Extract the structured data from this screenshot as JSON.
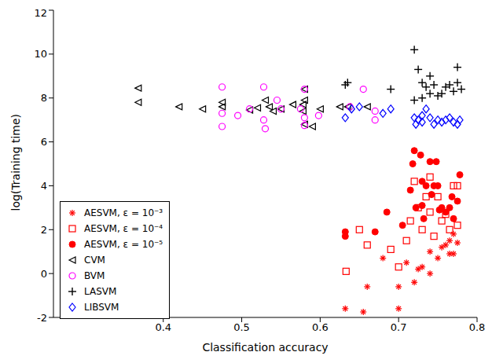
{
  "chart_data": {
    "type": "scatter",
    "x_label": "Classification accuracy",
    "y_label": "log(Training time)",
    "xlim": [
      0.26,
      0.8
    ],
    "xticks": [
      0.4,
      0.5,
      0.6,
      0.7,
      0.8
    ],
    "ylim": [
      -2,
      12
    ],
    "yticks": [
      -2,
      0,
      2,
      4,
      6,
      8,
      10,
      12
    ],
    "legend": "lower left",
    "series": [
      {
        "name": "AESVM, ε = 10⁻³",
        "color": "#ff0000",
        "marker": "asterisk",
        "x": [
          0.632,
          0.655,
          0.66,
          0.68,
          0.7,
          0.7,
          0.71,
          0.72,
          0.725,
          0.73,
          0.74,
          0.75,
          0.755,
          0.76,
          0.765,
          0.765,
          0.77,
          0.77,
          0.775,
          0.74
        ],
        "values": [
          -1.6,
          -1.75,
          -0.6,
          0.7,
          -0.6,
          -1.6,
          0.5,
          -0.4,
          0.2,
          0.3,
          1.0,
          0.7,
          1.2,
          1.3,
          1.5,
          0.9,
          1.8,
          0.9,
          1.4,
          0.0
        ]
      },
      {
        "name": "AESVM, ε = 10⁻⁴",
        "color": "#ff0000",
        "marker": "square_open",
        "x": [
          0.633,
          0.65,
          0.66,
          0.69,
          0.7,
          0.71,
          0.715,
          0.72,
          0.725,
          0.73,
          0.735,
          0.74,
          0.745,
          0.75,
          0.755,
          0.76,
          0.765,
          0.77,
          0.775,
          0.775,
          0.74
        ],
        "values": [
          0.1,
          2.0,
          1.3,
          1.1,
          0.3,
          1.5,
          2.4,
          4.2,
          3.0,
          2.0,
          3.5,
          4.4,
          1.7,
          3.5,
          2.4,
          2.7,
          2.0,
          4.0,
          2.2,
          4.0,
          2.8
        ]
      },
      {
        "name": "AESVM, ε = 10⁻⁵",
        "color": "#ff0000",
        "marker": "circle_filled",
        "x": [
          0.632,
          0.632,
          0.67,
          0.685,
          0.715,
          0.718,
          0.72,
          0.722,
          0.728,
          0.73,
          0.732,
          0.735,
          0.74,
          0.742,
          0.745,
          0.748,
          0.75,
          0.752,
          0.755,
          0.76,
          0.765,
          0.768,
          0.77,
          0.775,
          0.778,
          0.73,
          0.705
        ],
        "values": [
          1.9,
          1.7,
          1.9,
          2.8,
          3.8,
          5.0,
          5.6,
          3.0,
          5.4,
          4.2,
          2.5,
          4.0,
          5.1,
          3.6,
          4.0,
          5.1,
          4.0,
          2.9,
          3.0,
          2.8,
          3.0,
          3.5,
          2.5,
          3.3,
          4.5,
          3.1,
          2.2
        ]
      },
      {
        "name": "CVM",
        "color": "#000000",
        "marker": "triangle_left",
        "x": [
          0.368,
          0.368,
          0.42,
          0.45,
          0.475,
          0.475,
          0.51,
          0.52,
          0.53,
          0.535,
          0.54,
          0.55,
          0.565,
          0.578,
          0.58,
          0.578,
          0.58,
          0.58,
          0.59,
          0.6,
          0.625,
          0.635,
          0.66
        ],
        "values": [
          8.45,
          7.8,
          7.6,
          7.5,
          7.6,
          7.8,
          7.45,
          7.55,
          7.9,
          7.6,
          7.4,
          7.5,
          7.7,
          7.7,
          7.9,
          7.4,
          6.8,
          8.4,
          6.7,
          7.5,
          7.6,
          7.6,
          7.6
        ]
      },
      {
        "name": "BVM",
        "color": "#ff00ff",
        "marker": "circle_open",
        "x": [
          0.475,
          0.475,
          0.475,
          0.495,
          0.51,
          0.528,
          0.528,
          0.53,
          0.545,
          0.55,
          0.575,
          0.58,
          0.58,
          0.58,
          0.598,
          0.638,
          0.655,
          0.67,
          0.67
        ],
        "values": [
          8.5,
          7.3,
          6.7,
          7.2,
          7.5,
          8.5,
          7.0,
          6.6,
          7.9,
          7.5,
          7.5,
          8.4,
          7.1,
          6.75,
          7.2,
          7.6,
          8.4,
          7.0,
          7.4
        ]
      },
      {
        "name": "LASVM",
        "color": "#000000",
        "marker": "plus",
        "x": [
          0.632,
          0.635,
          0.69,
          0.72,
          0.725,
          0.73,
          0.735,
          0.74,
          0.74,
          0.745,
          0.75,
          0.755,
          0.76,
          0.765,
          0.77,
          0.775,
          0.775,
          0.78,
          0.72,
          0.73
        ],
        "values": [
          8.6,
          8.7,
          8.4,
          10.2,
          9.3,
          8.7,
          8.5,
          8.2,
          9.0,
          8.6,
          8.1,
          8.2,
          8.5,
          8.6,
          8.3,
          8.7,
          9.4,
          8.4,
          7.9,
          8.0
        ]
      },
      {
        "name": "LIBSVM",
        "color": "#0000ff",
        "marker": "diamond_open",
        "x": [
          0.632,
          0.64,
          0.65,
          0.68,
          0.69,
          0.72,
          0.725,
          0.73,
          0.735,
          0.74,
          0.745,
          0.75,
          0.755,
          0.76,
          0.765,
          0.77,
          0.775,
          0.778,
          0.722,
          0.73
        ],
        "values": [
          7.1,
          7.5,
          7.6,
          7.3,
          7.5,
          7.1,
          7.0,
          7.2,
          7.5,
          7.1,
          6.8,
          7.0,
          6.9,
          7.0,
          7.1,
          6.9,
          6.8,
          7.0,
          6.8,
          6.9
        ]
      }
    ]
  }
}
